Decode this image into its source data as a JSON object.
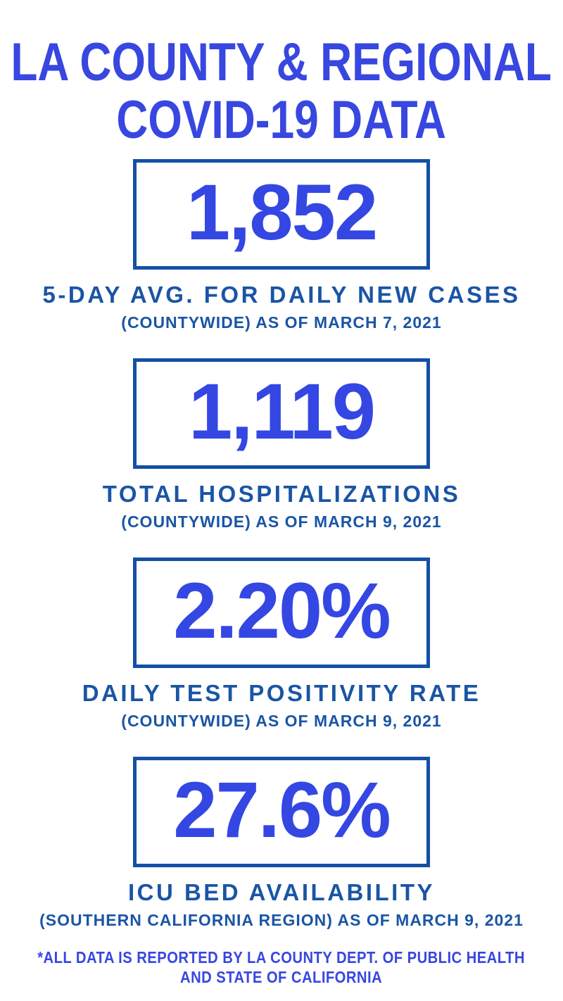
{
  "page": {
    "title_line1": "LA COUNTY & REGIONAL",
    "title_line2": "COVID-19 DATA"
  },
  "colors": {
    "accent_bright_blue": "#3847E0",
    "stat_value_blue": "#3447E3",
    "label_navy": "#1A55A5",
    "box_border_navy": "#1450A5",
    "background": "#FFFFFF"
  },
  "stats": [
    {
      "value": "1,852",
      "label": "5-DAY AVG. FOR DAILY NEW CASES",
      "scope": "(COUNTYWIDE) AS OF MARCH 7, 2021"
    },
    {
      "value": "1,119",
      "label": "TOTAL HOSPITALIZATIONS",
      "scope": "(COUNTYWIDE) AS OF MARCH 9, 2021"
    },
    {
      "value": "2.20%",
      "label": "DAILY TEST POSITIVITY RATE",
      "scope": "(COUNTYWIDE) AS OF MARCH 9, 2021"
    },
    {
      "value": "27.6%",
      "label": "ICU BED AVAILABILITY",
      "scope": "(SOUTHERN CALIFORNIA REGION) AS OF MARCH 9, 2021"
    }
  ],
  "footer": {
    "line1": "*ALL DATA IS REPORTED BY LA COUNTY DEPT. OF PUBLIC HEALTH",
    "line2": "AND STATE OF CALIFORNIA"
  }
}
